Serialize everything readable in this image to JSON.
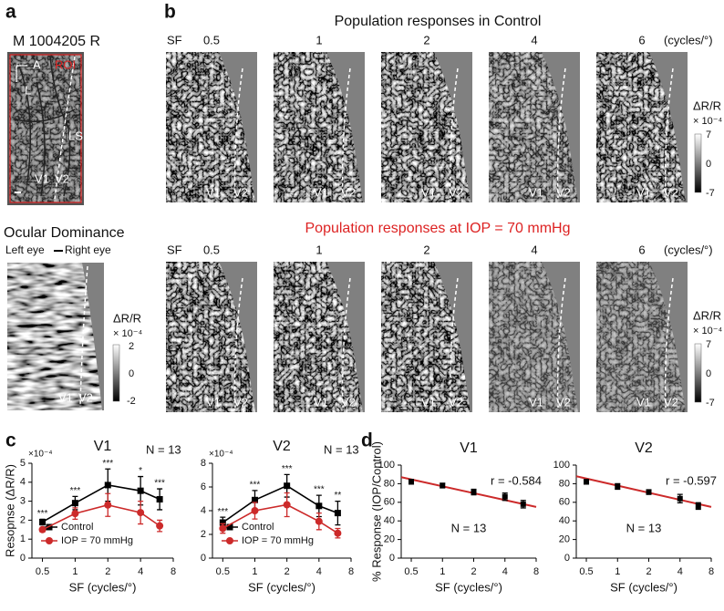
{
  "panel_a": {
    "label": "a",
    "title": "M 1004205 R",
    "axis_a": "A",
    "axis_l": "L",
    "roi": "ROI",
    "ls": "LS",
    "v1": "V1",
    "v2": "V2",
    "od_title": "Ocular Dominance",
    "left_eye": "Left eye",
    "right_eye": "Right eye",
    "colorbar": {
      "label": "ΔR/R",
      "unit": "× 10⁻⁴",
      "ticks": [
        2,
        0,
        -2
      ]
    }
  },
  "panel_b": {
    "label": "b",
    "titles": [
      "Population responses in Control",
      "Population responses at IOP = 70 mmHg"
    ],
    "sf_label": "SF",
    "sf_values": [
      0.5,
      1,
      2,
      4,
      6
    ],
    "sf_unit": "(cycles/°)",
    "v1": "V1",
    "v2": "V2",
    "colorbar": {
      "label": "ΔR/R",
      "unit": "× 10⁻⁴",
      "ticks": [
        7,
        0,
        -7
      ]
    }
  },
  "panel_c": {
    "label": "c"
  },
  "panel_d": {
    "label": "d"
  },
  "chart_data": [
    {
      "type": "line",
      "title": "V1",
      "annotation": "N = 13",
      "y_exponent": "×10⁻⁴",
      "ylabel": "Resopnse (ΔR/R)",
      "xlabel": "SF (cycles/°)",
      "x": [
        0.5,
        1,
        2,
        4,
        6
      ],
      "xscale": "log",
      "xlim": [
        0.4,
        8
      ],
      "xticks": [
        0.5,
        1,
        2,
        4,
        8
      ],
      "ylim": [
        0,
        5
      ],
      "yticks": [
        0,
        1,
        2,
        3,
        4,
        5
      ],
      "legend": "lower-left",
      "series": [
        {
          "name": "Control",
          "color": "#000000",
          "marker": "square",
          "values": [
            1.9,
            2.9,
            3.85,
            3.55,
            3.1
          ],
          "errors": [
            0.15,
            0.35,
            0.85,
            0.75,
            0.55
          ],
          "significance": [
            "***",
            "***",
            "***",
            "*",
            "***"
          ]
        },
        {
          "name": "IOP = 70 mmHg",
          "color": "#cc2a2a",
          "marker": "circle",
          "values": [
            1.5,
            2.35,
            2.8,
            2.4,
            1.7
          ],
          "errors": [
            0.12,
            0.3,
            0.6,
            0.6,
            0.3
          ]
        }
      ]
    },
    {
      "type": "line",
      "title": "V2",
      "annotation": "N = 13",
      "y_exponent": "×10⁻⁴",
      "xlabel": "SF (cycles/°)",
      "x": [
        0.5,
        1,
        2,
        4,
        6
      ],
      "xscale": "log",
      "xlim": [
        0.4,
        8
      ],
      "xticks": [
        0.5,
        1,
        2,
        4,
        8
      ],
      "ylim": [
        0,
        8
      ],
      "yticks": [
        0,
        2,
        4,
        6,
        8
      ],
      "legend": "lower-left",
      "series": [
        {
          "name": "Control",
          "color": "#000000",
          "marker": "square",
          "values": [
            3.0,
            4.9,
            6.1,
            4.4,
            3.8
          ],
          "errors": [
            0.45,
            0.8,
            0.95,
            0.9,
            1.0
          ],
          "significance": [
            "***",
            "***",
            "***",
            "***",
            "**"
          ]
        },
        {
          "name": "IOP = 70 mmHg",
          "color": "#cc2a2a",
          "marker": "circle",
          "values": [
            2.5,
            4.0,
            4.5,
            3.1,
            2.1
          ],
          "errors": [
            0.4,
            0.7,
            1.0,
            0.7,
            0.4
          ]
        }
      ]
    },
    {
      "type": "scatter",
      "title": "V1",
      "ylabel": "% Response (IOP/Control)",
      "xlabel": "SF (cycles/°)",
      "x": [
        0.5,
        1,
        2,
        4,
        6
      ],
      "xscale": "log",
      "xlim": [
        0.4,
        8
      ],
      "xticks": [
        0.5,
        1,
        2,
        4,
        8
      ],
      "ylim": [
        0,
        100
      ],
      "yticks": [
        0,
        20,
        40,
        60,
        80,
        100
      ],
      "color": "#000000",
      "values": [
        82,
        78,
        71,
        66,
        58
      ],
      "errors": [
        2.5,
        2.5,
        3,
        4,
        4
      ],
      "fit": {
        "x": [
          0.4,
          8
        ],
        "y": [
          87,
          55
        ],
        "color": "#cc2a2a"
      },
      "r": "r = -0.584",
      "annotation": "N = 13"
    },
    {
      "type": "scatter",
      "title": "V2",
      "xlabel": "SF (cycles/°)",
      "x": [
        0.5,
        1,
        2,
        4,
        6
      ],
      "xscale": "log",
      "xlim": [
        0.4,
        8
      ],
      "xticks": [
        0.5,
        1,
        2,
        4,
        8
      ],
      "ylim": [
        0,
        100
      ],
      "yticks": [
        0,
        20,
        40,
        60,
        80,
        100
      ],
      "color": "#000000",
      "values": [
        82,
        77,
        71,
        64,
        56
      ],
      "errors": [
        2.5,
        3,
        2.5,
        4.5,
        3.5
      ],
      "fit": {
        "x": [
          0.4,
          8
        ],
        "y": [
          88,
          55
        ],
        "color": "#cc2a2a"
      },
      "r": "r = -0.597",
      "annotation": "N = 13"
    }
  ]
}
